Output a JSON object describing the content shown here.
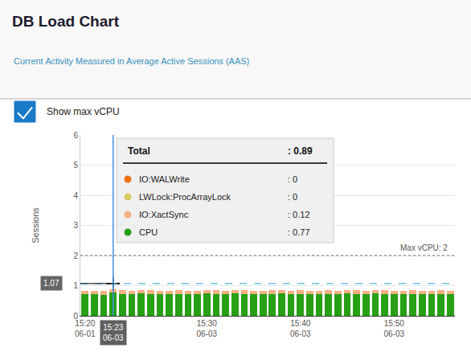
{
  "chart_data": {
    "type": "bar",
    "title": "DB Load Chart",
    "subtitle": "Current Activity Measured in Average Active Sessions (AAS)",
    "ylabel": "Sessions",
    "stacked": true,
    "grid": true,
    "ylim": [
      0,
      6
    ],
    "yticks": [
      0,
      1,
      2,
      3,
      4,
      5,
      6
    ],
    "categories": [
      "15:20\n06-01",
      null,
      null,
      "15:23\n06-03",
      null,
      null,
      null,
      null,
      null,
      null,
      null,
      null,
      null,
      "15:30\n06-03",
      null,
      null,
      null,
      null,
      null,
      null,
      null,
      null,
      null,
      "15:40\n06-03",
      null,
      null,
      null,
      null,
      null,
      null,
      null,
      null,
      null,
      "15:50\n06-03",
      null,
      null,
      null,
      null,
      null,
      null
    ],
    "series": [
      {
        "name": "CPU",
        "color": "#27a015",
        "values": [
          0.72,
          0.71,
          0.7,
          0.77,
          0.73,
          0.72,
          0.74,
          0.73,
          0.72,
          0.71,
          0.73,
          0.72,
          0.71,
          0.74,
          0.73,
          0.72,
          0.74,
          0.73,
          0.72,
          0.71,
          0.73,
          0.74,
          0.72,
          0.73,
          0.72,
          0.71,
          0.73,
          0.72,
          0.74,
          0.73,
          0.72,
          0.74,
          0.73,
          0.72,
          0.71,
          0.73,
          0.72,
          0.71,
          0.73,
          0.72
        ]
      },
      {
        "name": "IO:XactSync",
        "color": "#f5b080",
        "values": [
          0.12,
          0.12,
          0.12,
          0.12,
          0.12,
          0.12,
          0.12,
          0.12,
          0.12,
          0.12,
          0.12,
          0.12,
          0.12,
          0.12,
          0.12,
          0.12,
          0.12,
          0.12,
          0.12,
          0.12,
          0.12,
          0.12,
          0.12,
          0.12,
          0.12,
          0.12,
          0.12,
          0.12,
          0.12,
          0.12,
          0.12,
          0.12,
          0.12,
          0.12,
          0.12,
          0.12,
          0.12,
          0.12,
          0.12,
          0.12
        ]
      },
      {
        "name": "IO:WALWrite",
        "color": "#f07010",
        "values": [
          0.0,
          0.0,
          0.0,
          0.0,
          0.0,
          0.0,
          0.0,
          0.0,
          0.0,
          0.0,
          0.0,
          0.0,
          0.0,
          0.0,
          0.0,
          0.0,
          0.0,
          0.0,
          0.0,
          0.0,
          0.0,
          0.0,
          0.0,
          0.0,
          0.0,
          0.0,
          0.0,
          0.0,
          0.0,
          0.0,
          0.0,
          0.0,
          0.0,
          0.0,
          0.0,
          0.0,
          0.0,
          0.0,
          0.0,
          0.0
        ]
      },
      {
        "name": "LWLock:ProcArrayLock",
        "color": "#d8cc60",
        "values": [
          0.0,
          0.0,
          0.0,
          0.0,
          0.0,
          0.0,
          0.0,
          0.0,
          0.0,
          0.0,
          0.0,
          0.0,
          0.0,
          0.0,
          0.0,
          0.0,
          0.0,
          0.0,
          0.0,
          0.0,
          0.0,
          0.0,
          0.0,
          0.0,
          0.0,
          0.0,
          0.0,
          0.0,
          0.0,
          0.0,
          0.0,
          0.0,
          0.0,
          0.0,
          0.0,
          0.0,
          0.0,
          0.0,
          0.0,
          0.0
        ]
      }
    ],
    "lines": [
      {
        "value": 2,
        "color": "#999999",
        "line_style": "dotted",
        "label": "Max vCPU: 2"
      },
      {
        "value": 1.07,
        "color": "#50b8d8",
        "line_style": "dashed"
      }
    ],
    "cursor": {
      "category_index": 3,
      "value": 1.07,
      "color": "#4090e0"
    },
    "checkbox": {
      "label": "Show max vCPU",
      "checked": true,
      "color": "#1a7ac8"
    },
    "tooltip": {
      "heading": "Total",
      "heading_value": ": 0.89",
      "rows": [
        {
          "name": "IO:WALWrite",
          "value": ": 0"
        },
        {
          "name": "LWLock:ProcArrayLock",
          "value": ": 0"
        },
        {
          "name": "IO:XactSync",
          "value": ": 0.12"
        },
        {
          "name": "CPU",
          "value": ": 0.77"
        }
      ]
    }
  }
}
